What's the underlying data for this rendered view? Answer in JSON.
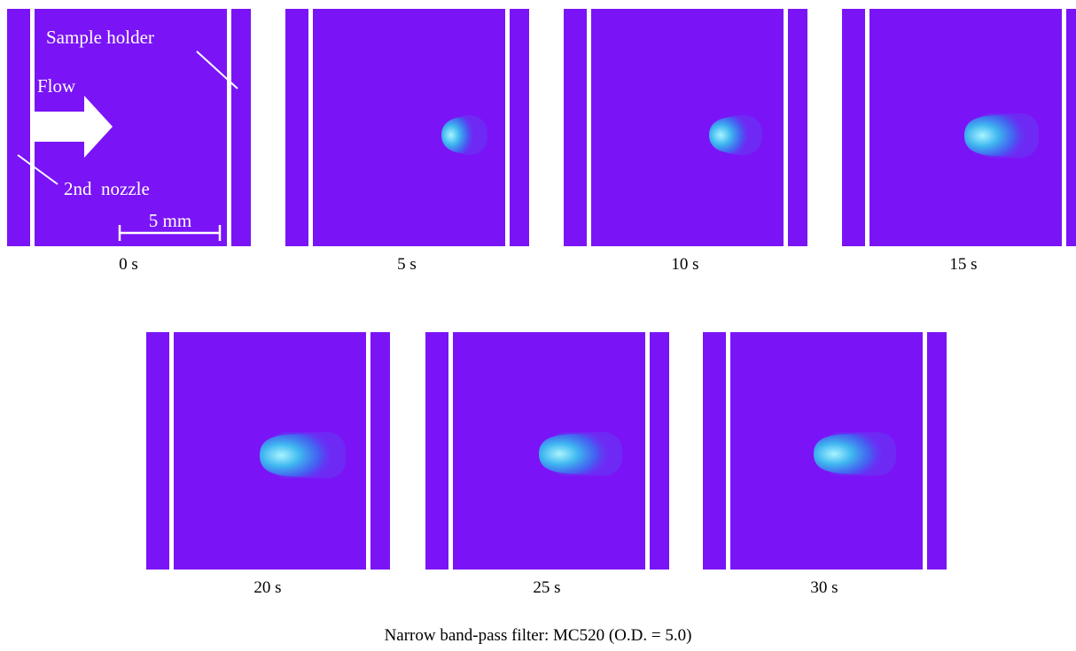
{
  "panels": [
    {
      "label": "0 s"
    },
    {
      "label": "5 s"
    },
    {
      "label": "10 s"
    },
    {
      "label": "15 s"
    },
    {
      "label": "20 s"
    },
    {
      "label": "25 s"
    },
    {
      "label": "30 s"
    }
  ],
  "annotations": {
    "sample_holder": "Sample holder",
    "flow": "Flow",
    "nozzle": "2nd  nozzle",
    "scale": "5 mm"
  },
  "caption": "Narrow band-pass filter: MC520 (O.D. = 5.0)"
}
